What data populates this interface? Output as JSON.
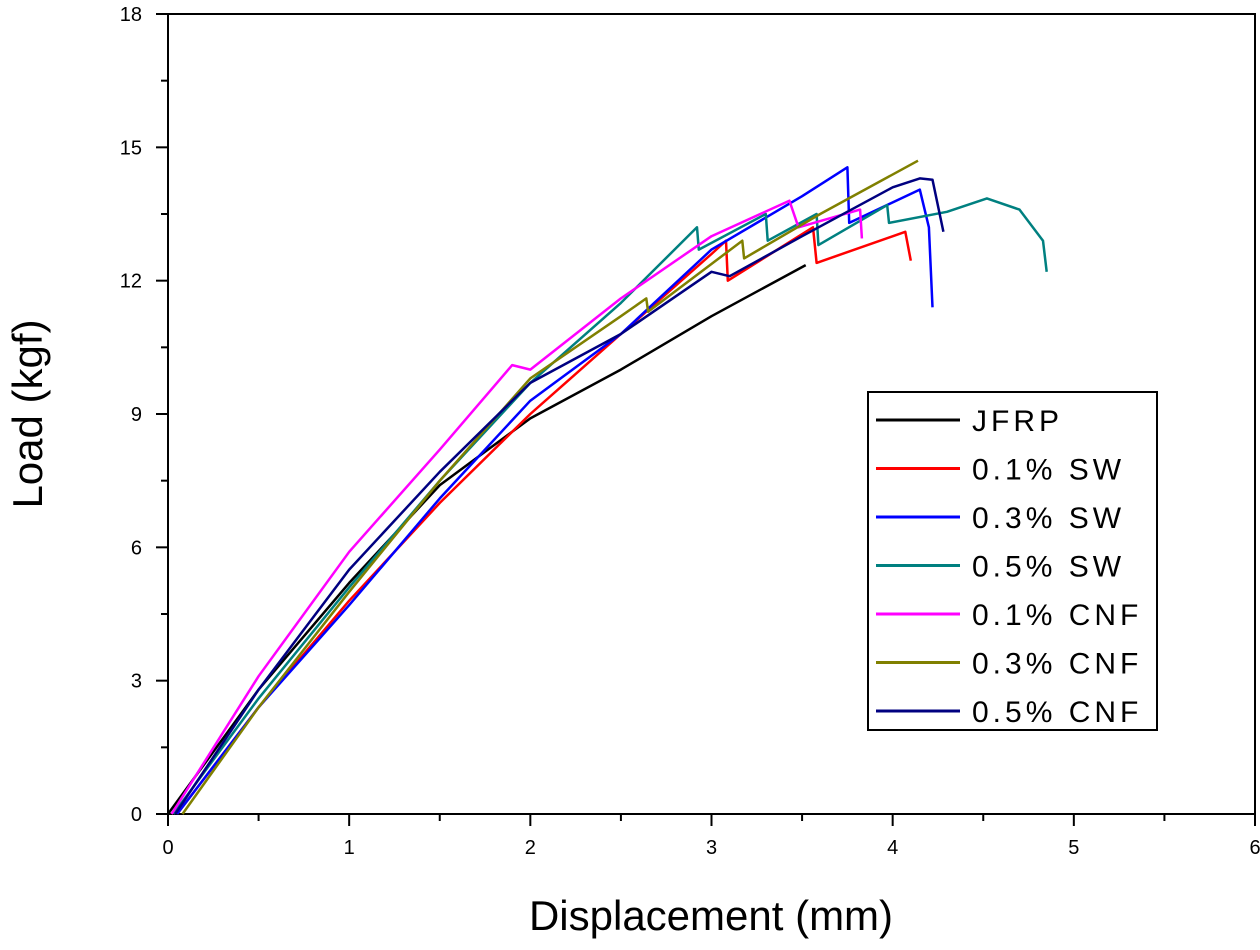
{
  "chart_data": {
    "type": "line",
    "title": "",
    "xlabel": "Displacement (mm)",
    "ylabel": "Load (kgf)",
    "xlim": [
      0,
      6
    ],
    "ylim": [
      0,
      18
    ],
    "xticks": [
      0,
      1,
      2,
      3,
      4,
      5,
      6
    ],
    "yticks": [
      0,
      3,
      6,
      9,
      12,
      15,
      18
    ],
    "grid": false,
    "legend_position": "center-right",
    "series": [
      {
        "name": "JFRP",
        "color": "#000000",
        "x": [
          0,
          0.5,
          1,
          1.5,
          2,
          2.5,
          3,
          3.52
        ],
        "y": [
          0,
          2.8,
          5.2,
          7.4,
          8.9,
          10.0,
          11.2,
          12.35
        ]
      },
      {
        "name": "0.1% SW",
        "color": "#ff0000",
        "x": [
          0.05,
          0.5,
          1,
          1.5,
          2,
          2.5,
          3.0,
          3.08,
          3.09,
          3.56,
          3.58,
          4.07,
          4.1
        ],
        "y": [
          0,
          2.4,
          4.8,
          7.0,
          9.0,
          10.8,
          12.6,
          12.9,
          12.0,
          13.2,
          12.4,
          13.1,
          12.45
        ]
      },
      {
        "name": "0.3% SW",
        "color": "#0000ff",
        "x": [
          0.05,
          0.5,
          1,
          1.5,
          2,
          2.5,
          3,
          3.5,
          3.75,
          3.76,
          4.15,
          4.2,
          4.22
        ],
        "y": [
          0,
          2.4,
          4.7,
          7.1,
          9.3,
          10.8,
          12.7,
          13.9,
          14.55,
          13.3,
          14.05,
          13.2,
          11.4
        ]
      },
      {
        "name": "0.5% SW",
        "color": "#008080",
        "x": [
          0.03,
          0.5,
          1,
          1.5,
          2,
          2.5,
          2.92,
          2.93,
          3.3,
          3.31,
          3.58,
          3.59,
          3.97,
          3.98,
          4.3,
          4.52,
          4.7,
          4.83,
          4.85
        ],
        "y": [
          0,
          2.6,
          5.1,
          7.5,
          9.7,
          11.5,
          13.2,
          12.7,
          13.5,
          12.9,
          13.5,
          12.8,
          13.7,
          13.3,
          13.55,
          13.85,
          13.6,
          12.9,
          12.2
        ]
      },
      {
        "name": "0.1% CNF",
        "color": "#ff00ff",
        "x": [
          0.02,
          0.5,
          1,
          1.5,
          1.9,
          2.0,
          2.5,
          3,
          3.43,
          3.48,
          3.82,
          3.83
        ],
        "y": [
          0,
          3.1,
          5.9,
          8.2,
          10.1,
          10.0,
          11.6,
          13.0,
          13.8,
          13.2,
          13.6,
          12.95
        ]
      },
      {
        "name": "0.3% CNF",
        "color": "#808000",
        "x": [
          0.08,
          0.5,
          1,
          1.5,
          2,
          2.5,
          2.64,
          2.65,
          3.17,
          3.18,
          3.6,
          4.14
        ],
        "y": [
          0,
          2.4,
          5.0,
          7.5,
          9.8,
          11.2,
          11.6,
          11.3,
          12.9,
          12.5,
          13.5,
          14.7
        ]
      },
      {
        "name": "0.5% CNF",
        "color": "#000080",
        "x": [
          0.04,
          0.5,
          1,
          1.5,
          2,
          2.5,
          3,
          3.1,
          3.5,
          4.0,
          4.15,
          4.22,
          4.28
        ],
        "y": [
          0,
          2.8,
          5.5,
          7.7,
          9.7,
          10.8,
          12.2,
          12.1,
          13.0,
          14.1,
          14.3,
          14.27,
          13.1
        ]
      }
    ]
  }
}
